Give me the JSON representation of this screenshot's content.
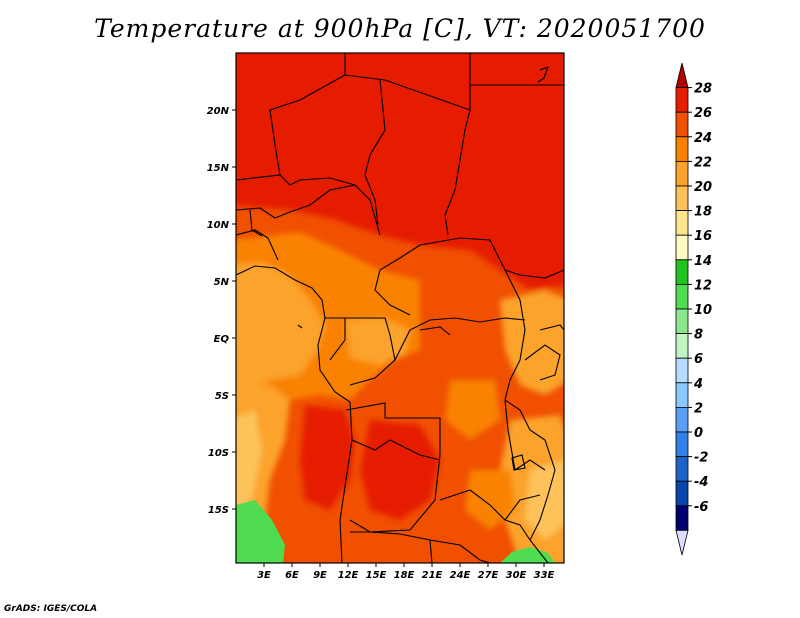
{
  "title": "Temperature at 900hPa [C], VT: 2020051700",
  "credit": "GrADS: IGES/COLA",
  "map": {
    "variable": "Temperature",
    "level": "900hPa",
    "units": "C",
    "valid_time": "2020051700",
    "lon_labels": [
      "3E",
      "6E",
      "9E",
      "12E",
      "15E",
      "18E",
      "21E",
      "24E",
      "27E",
      "30E",
      "33E"
    ],
    "lat_labels": [
      "20N",
      "15N",
      "10N",
      "5N",
      "EQ",
      "5S",
      "10S",
      "15S"
    ]
  },
  "colorbar": {
    "levels": [
      "28",
      "26",
      "24",
      "22",
      "20",
      "18",
      "16",
      "14",
      "12",
      "10",
      "8",
      "6",
      "4",
      "2",
      "0",
      "-2",
      "-4",
      "-6"
    ],
    "colors": [
      "#b40000",
      "#e61e00",
      "#f05000",
      "#f98200",
      "#fba32b",
      "#fdc35a",
      "#fde58c",
      "#fffac3",
      "#1ec31e",
      "#50dc50",
      "#8ce68c",
      "#c3f5c3",
      "#b4dcff",
      "#8cc8ff",
      "#5aa0f5",
      "#3282e6",
      "#1e64c8",
      "#0a46aa",
      "#00006e",
      "#dcdcff"
    ]
  }
}
